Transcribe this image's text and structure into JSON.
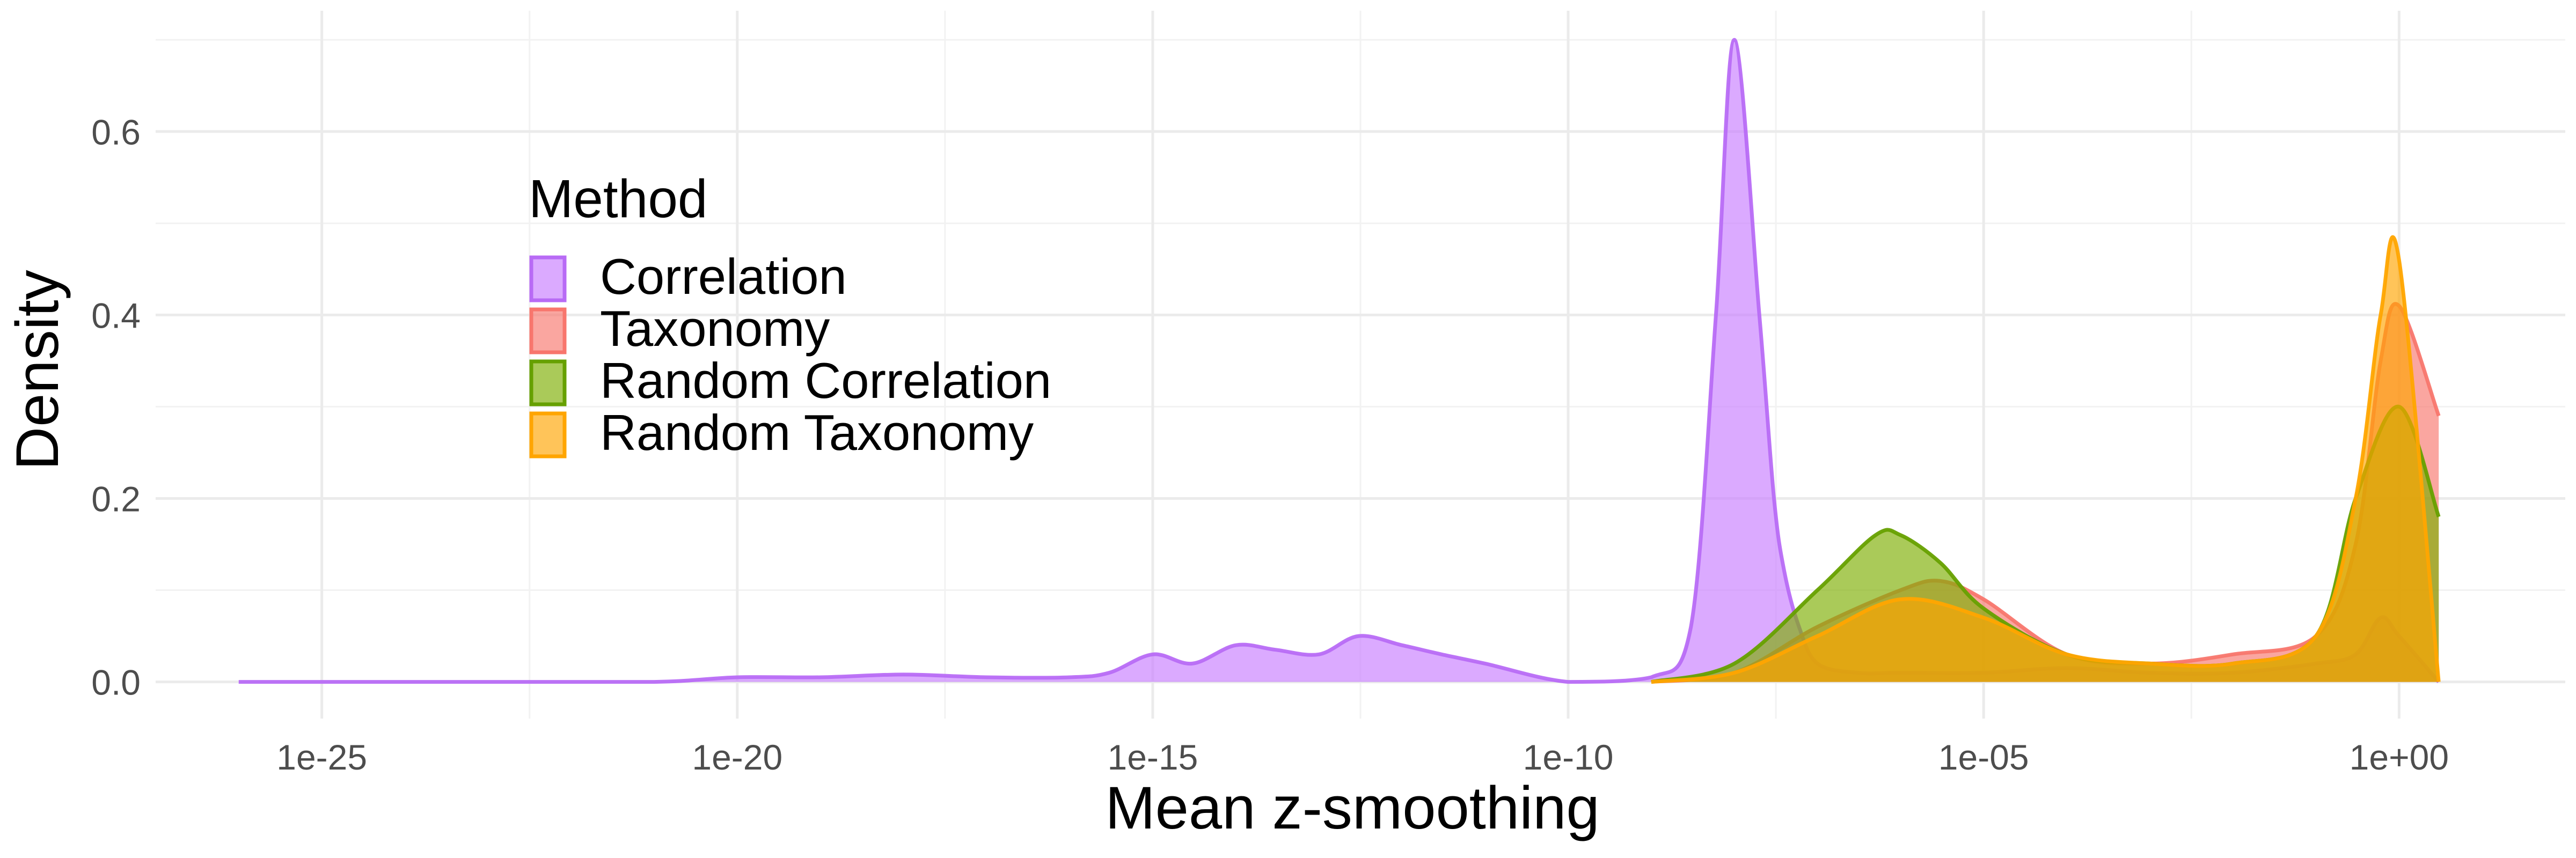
{
  "chart_data": {
    "type": "area",
    "title": "",
    "xlabel": "Mean z-smoothing",
    "ylabel": "Density",
    "x_scale": "log10",
    "xlim": [
      1e-27,
      100.0
    ],
    "ylim": [
      -0.04,
      0.72
    ],
    "x_ticks": [
      {
        "value": 1e-25,
        "label": "1e-25"
      },
      {
        "value": 1e-20,
        "label": "1e-20"
      },
      {
        "value": 1e-15,
        "label": "1e-15"
      },
      {
        "value": 1e-10,
        "label": "1e-10"
      },
      {
        "value": 1e-05,
        "label": "1e-05"
      },
      {
        "value": 1,
        "label": "1e+00"
      }
    ],
    "y_ticks": [
      {
        "value": 0.0,
        "label": "0.0"
      },
      {
        "value": 0.2,
        "label": "0.2"
      },
      {
        "value": 0.4,
        "label": "0.4"
      },
      {
        "value": 0.6,
        "label": "0.6"
      }
    ],
    "grid": true,
    "legend": {
      "title": "Method",
      "position": "top-left"
    },
    "series": [
      {
        "name": "Correlation",
        "fill": "#C77CFF",
        "stroke": "#B86BF5",
        "x": [
          1e-26,
          1e-25,
          3e-24,
          1e-23,
          1e-21,
          1e-20,
          1e-19,
          1e-18,
          1e-17,
          1e-16,
          3e-16,
          1e-15,
          3e-15,
          1e-14,
          3e-14,
          1e-13,
          3e-13,
          1e-12,
          3e-12,
          1e-11,
          1e-10,
          1e-09,
          3e-09,
          6e-09,
          1e-08,
          2e-08,
          3e-08,
          4e-08,
          6e-08,
          1e-07,
          3e-07,
          1e-06,
          1e-05,
          0.0001,
          0.001,
          0.01,
          0.1,
          0.3,
          0.6,
          1,
          3
        ],
        "y": [
          0.0,
          0.0,
          0.0,
          0.0,
          0.0,
          0.005,
          0.005,
          0.008,
          0.005,
          0.005,
          0.01,
          0.03,
          0.02,
          0.04,
          0.035,
          0.03,
          0.05,
          0.04,
          0.03,
          0.02,
          0.0,
          0.005,
          0.06,
          0.4,
          0.7,
          0.4,
          0.2,
          0.12,
          0.06,
          0.02,
          0.01,
          0.01,
          0.01,
          0.015,
          0.01,
          0.01,
          0.02,
          0.03,
          0.07,
          0.05,
          0.0
        ]
      },
      {
        "name": "Taxonomy",
        "fill": "#F8766D",
        "stroke": "#F8766D",
        "x": [
          1e-09,
          1e-08,
          1e-07,
          1e-06,
          3e-06,
          1e-05,
          0.0001,
          0.001,
          0.01,
          0.1,
          0.3,
          0.6,
          1,
          3
        ],
        "y": [
          0.0,
          0.01,
          0.06,
          0.1,
          0.11,
          0.09,
          0.03,
          0.02,
          0.03,
          0.05,
          0.15,
          0.35,
          0.41,
          0.29
        ]
      },
      {
        "name": "Random Correlation",
        "fill": "#7CAE00",
        "stroke": "#66A000",
        "x": [
          1e-09,
          1e-08,
          1e-07,
          5e-07,
          1e-06,
          3e-06,
          1e-05,
          0.0001,
          0.001,
          0.01,
          0.1,
          0.3,
          1,
          3
        ],
        "y": [
          0.0,
          0.02,
          0.1,
          0.16,
          0.16,
          0.13,
          0.08,
          0.03,
          0.02,
          0.02,
          0.05,
          0.2,
          0.3,
          0.18
        ]
      },
      {
        "name": "Random Taxonomy",
        "fill": "#FFA500",
        "stroke": "#FFA500",
        "x": [
          1e-09,
          1e-08,
          1e-07,
          1e-06,
          1e-05,
          0.0001,
          0.001,
          0.01,
          0.1,
          0.3,
          0.6,
          1,
          3
        ],
        "y": [
          0.0,
          0.01,
          0.05,
          0.09,
          0.07,
          0.03,
          0.02,
          0.02,
          0.05,
          0.2,
          0.4,
          0.46,
          0.0
        ]
      }
    ]
  }
}
